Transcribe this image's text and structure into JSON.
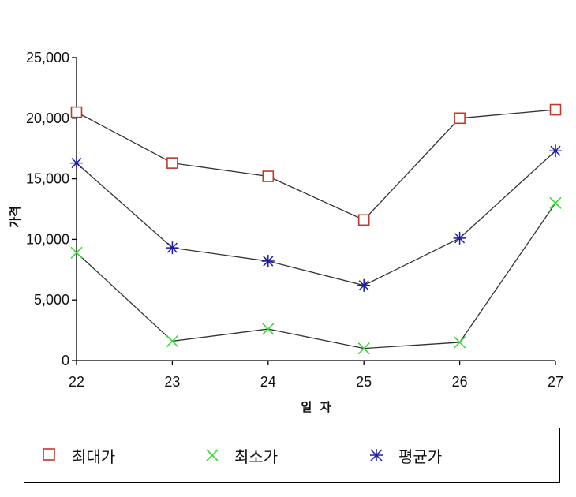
{
  "chart_data": {
    "type": "line",
    "title": "",
    "xlabel": "일  자",
    "ylabel": "가격",
    "categories": [
      "22",
      "23",
      "24",
      "25",
      "26",
      "27"
    ],
    "ylim": [
      0,
      25000
    ],
    "yticks": [
      "0",
      "5,000",
      "10,000",
      "15,000",
      "20,000",
      "25,000"
    ],
    "ytick_values": [
      0,
      5000,
      10000,
      15000,
      20000,
      25000
    ],
    "grid": false,
    "legend_position": "bottom",
    "series": [
      {
        "name": "최대가",
        "marker": "square",
        "color": "#c0392b",
        "values": [
          20500,
          16300,
          15200,
          11600,
          20000,
          20700
        ]
      },
      {
        "name": "최소가",
        "marker": "x",
        "color": "#33dd33",
        "values": [
          8900,
          1600,
          2600,
          1000,
          1500,
          13000
        ]
      },
      {
        "name": "평균가",
        "marker": "asterisk",
        "color": "#1a1aaa",
        "values": [
          16300,
          9300,
          8200,
          6200,
          10100,
          17300
        ]
      }
    ]
  }
}
